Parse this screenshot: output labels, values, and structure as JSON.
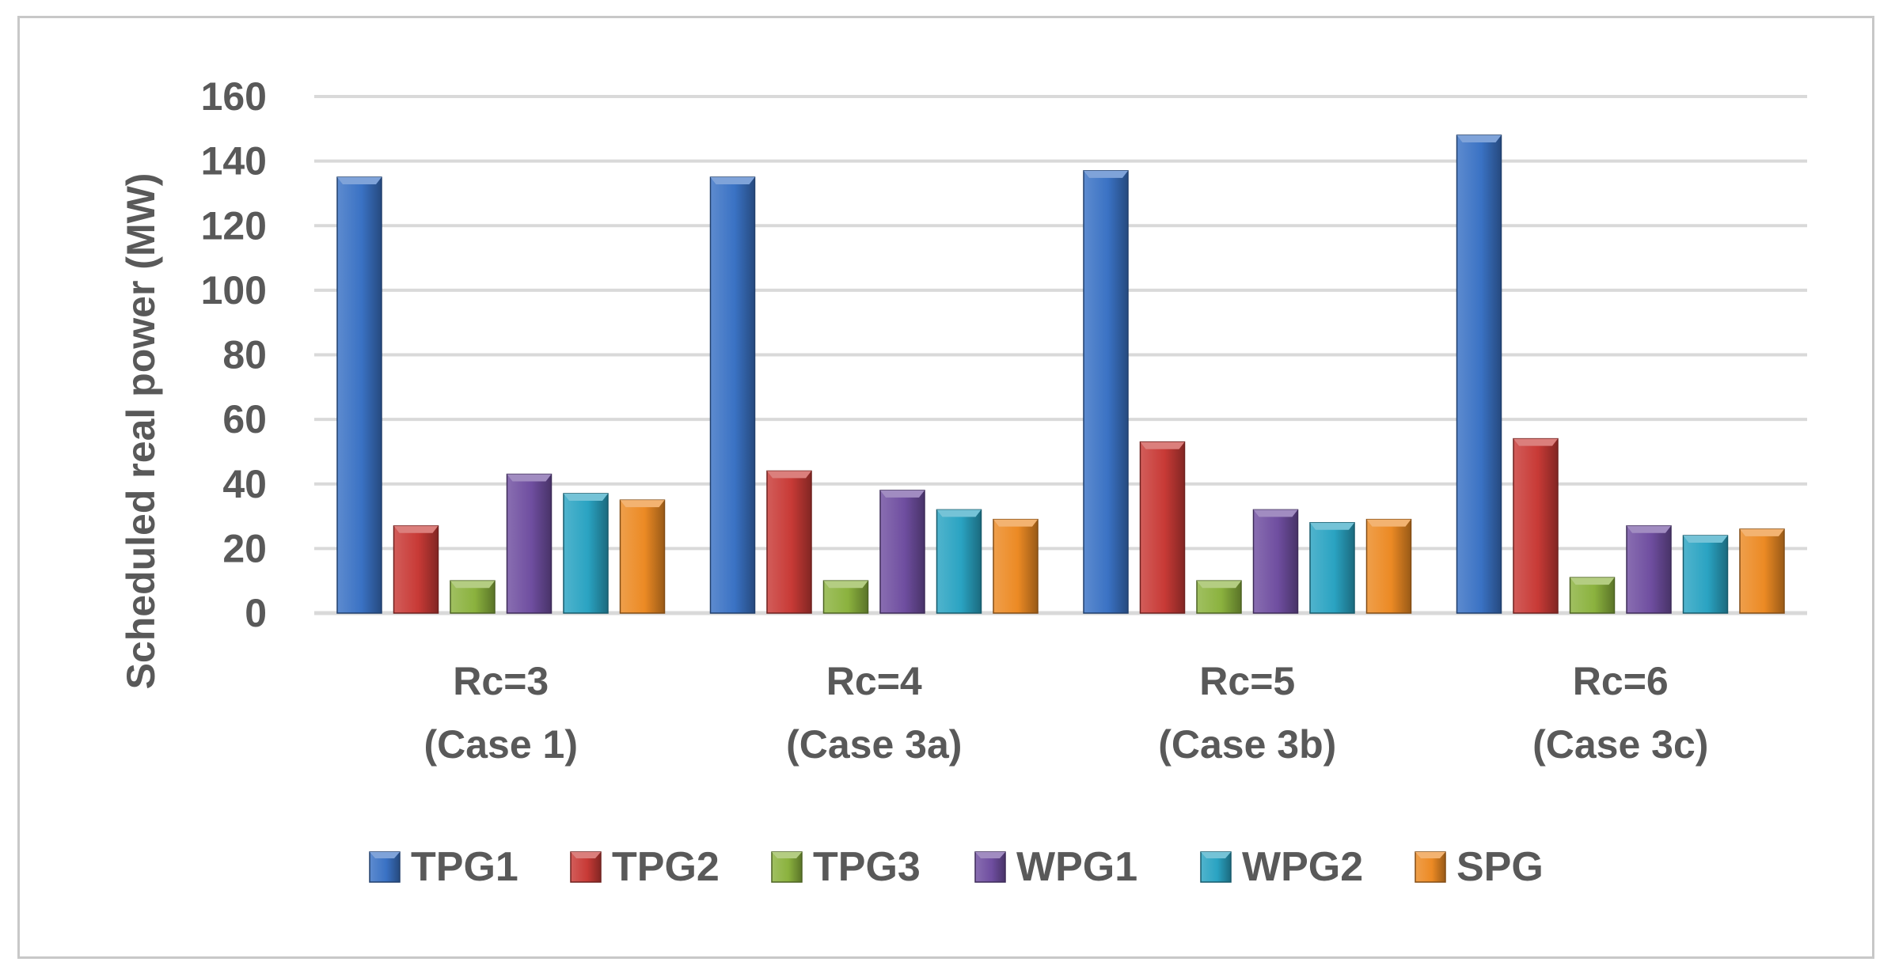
{
  "chart_data": {
    "type": "bar",
    "title": "",
    "xlabel": "",
    "ylabel": "Scheduled real power (MW)",
    "ylim": [
      0,
      160
    ],
    "yticks": [
      0,
      20,
      40,
      60,
      80,
      100,
      120,
      140,
      160
    ],
    "grid": true,
    "legend_position": "bottom",
    "categories": [
      [
        "Rc=3",
        "(Case 1)"
      ],
      [
        "Rc=4",
        "(Case 3a)"
      ],
      [
        "Rc=5",
        "(Case 3b)"
      ],
      [
        "Rc=6",
        "(Case 3c)"
      ]
    ],
    "series": [
      {
        "name": "TPG1",
        "color": "#3a72c4",
        "values": [
          135,
          135,
          137,
          148
        ]
      },
      {
        "name": "TPG2",
        "color": "#c83a36",
        "values": [
          27,
          44,
          53,
          54
        ]
      },
      {
        "name": "TPG3",
        "color": "#8bb23e",
        "values": [
          10,
          10,
          10,
          11
        ]
      },
      {
        "name": "WPG1",
        "color": "#6f4ea0",
        "values": [
          43,
          38,
          32,
          27
        ]
      },
      {
        "name": "WPG2",
        "color": "#2aa3c2",
        "values": [
          37,
          32,
          28,
          24
        ]
      },
      {
        "name": "SPG",
        "color": "#ec8a24",
        "values": [
          35,
          29,
          29,
          26
        ]
      }
    ]
  }
}
